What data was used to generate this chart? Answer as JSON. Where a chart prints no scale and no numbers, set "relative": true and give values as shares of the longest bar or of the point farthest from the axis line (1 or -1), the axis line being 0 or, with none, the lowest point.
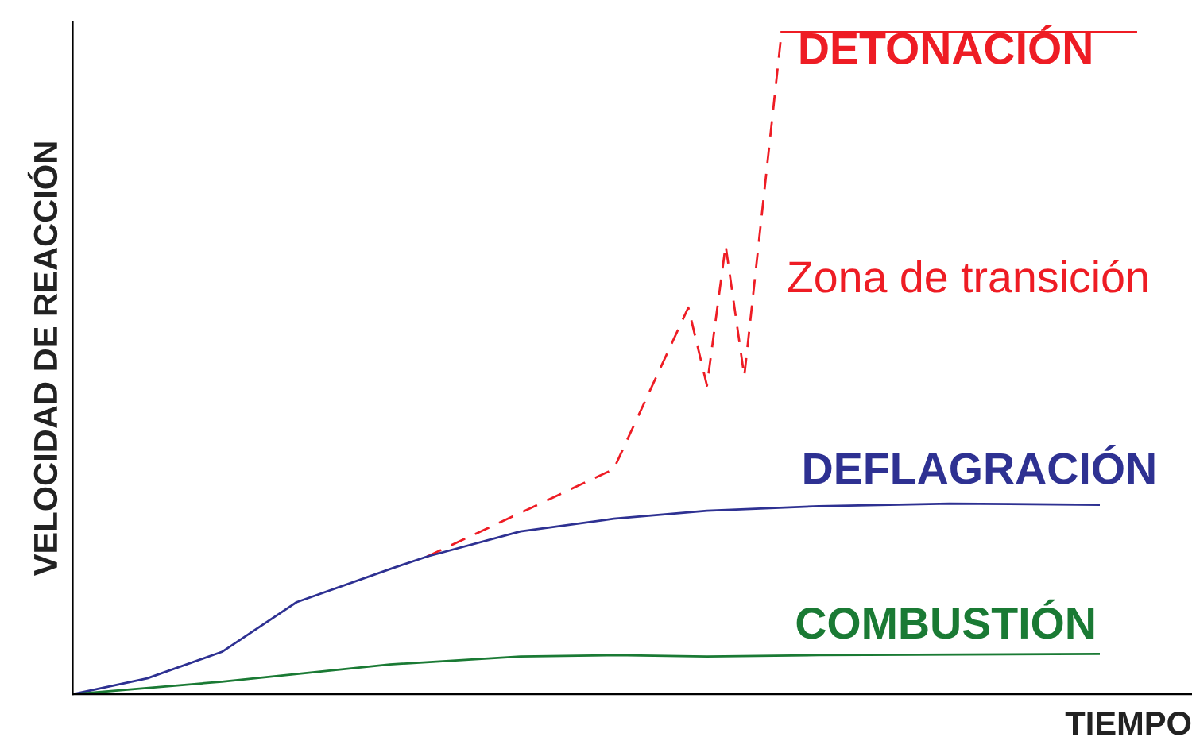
{
  "chart_data": {
    "type": "line",
    "relative": true,
    "xlabel": "TIEMPO",
    "ylabel": "VELOCIDAD DE REACCIÓN",
    "grid": false,
    "legend": false,
    "marker": "none",
    "categories": [
      null,
      null,
      null,
      null,
      null,
      null,
      null,
      null,
      null,
      null,
      null,
      null,
      null,
      null,
      null,
      null,
      null,
      null,
      null,
      null,
      null,
      null,
      null,
      null,
      null,
      null,
      null,
      null,
      null,
      null,
      null,
      null,
      null,
      null,
      null,
      null,
      null,
      null,
      null,
      null,
      null,
      null,
      null,
      null,
      null,
      null,
      null,
      null,
      null,
      null,
      null,
      null,
      null,
      null,
      null,
      null,
      null,
      null,
      null,
      null,
      null
    ],
    "series": [
      {
        "name": "DETONACIÓN",
        "color": "#ee1c24",
        "line_style": "solid",
        "values": [
          null,
          null,
          null,
          null,
          null,
          null,
          null,
          null,
          null,
          null,
          null,
          null,
          null,
          null,
          null,
          null,
          null,
          null,
          null,
          null,
          null,
          null,
          null,
          null,
          null,
          null,
          null,
          null,
          null,
          null,
          null,
          null,
          null,
          null,
          null,
          null,
          null,
          null,
          1,
          null,
          null,
          null,
          null,
          null,
          null,
          null,
          null,
          null,
          null,
          null,
          null,
          null,
          null,
          null,
          null,
          null,
          null,
          1,
          null,
          null,
          null
        ]
      },
      {
        "name": "Zona de transición",
        "color": "#ee1c24",
        "line_style": "dashed",
        "values": [
          null,
          null,
          null,
          null,
          null,
          null,
          null,
          null,
          null,
          null,
          null,
          null,
          null,
          null,
          null,
          null,
          null,
          null,
          null,
          0.208,
          null,
          null,
          null,
          null,
          null,
          null,
          null,
          null,
          null,
          0.34,
          null,
          null,
          null,
          0.584,
          0.466,
          0.678,
          0.48,
          null,
          1,
          null,
          null,
          null,
          null,
          null,
          null,
          null,
          null,
          null,
          null,
          null,
          null,
          null,
          null,
          null,
          null,
          null,
          null,
          null,
          null,
          null,
          null
        ]
      },
      {
        "name": "DEFLAGRACIÓN",
        "color": "#2e3192",
        "line_style": "solid",
        "values": [
          0,
          null,
          null,
          null,
          0.024,
          null,
          null,
          null,
          0.064,
          null,
          null,
          null,
          0.139,
          null,
          null,
          null,
          null,
          0.189,
          null,
          0.208,
          null,
          null,
          null,
          null,
          0.246,
          null,
          null,
          null,
          null,
          0.265,
          null,
          null,
          null,
          null,
          0.277,
          null,
          null,
          null,
          null,
          null,
          0.284,
          null,
          null,
          null,
          null,
          null,
          null,
          0.288,
          null,
          null,
          null,
          null,
          null,
          null,
          null,
          0.286,
          null,
          null,
          null,
          null,
          null
        ]
      },
      {
        "name": "COMBUSTIÓN",
        "color": "#1a7a34",
        "line_style": "solid",
        "values": [
          0,
          null,
          null,
          null,
          null,
          null,
          null,
          null,
          0.019,
          null,
          null,
          null,
          null,
          null,
          null,
          null,
          null,
          0.045,
          null,
          null,
          null,
          null,
          null,
          null,
          0.057,
          null,
          null,
          null,
          null,
          0.059,
          null,
          null,
          null,
          null,
          0.057,
          null,
          null,
          null,
          null,
          null,
          0.059,
          null,
          null,
          null,
          null,
          null,
          null,
          null,
          null,
          null,
          null,
          null,
          null,
          null,
          null,
          0.061,
          null,
          null,
          null,
          null,
          null
        ]
      }
    ]
  }
}
